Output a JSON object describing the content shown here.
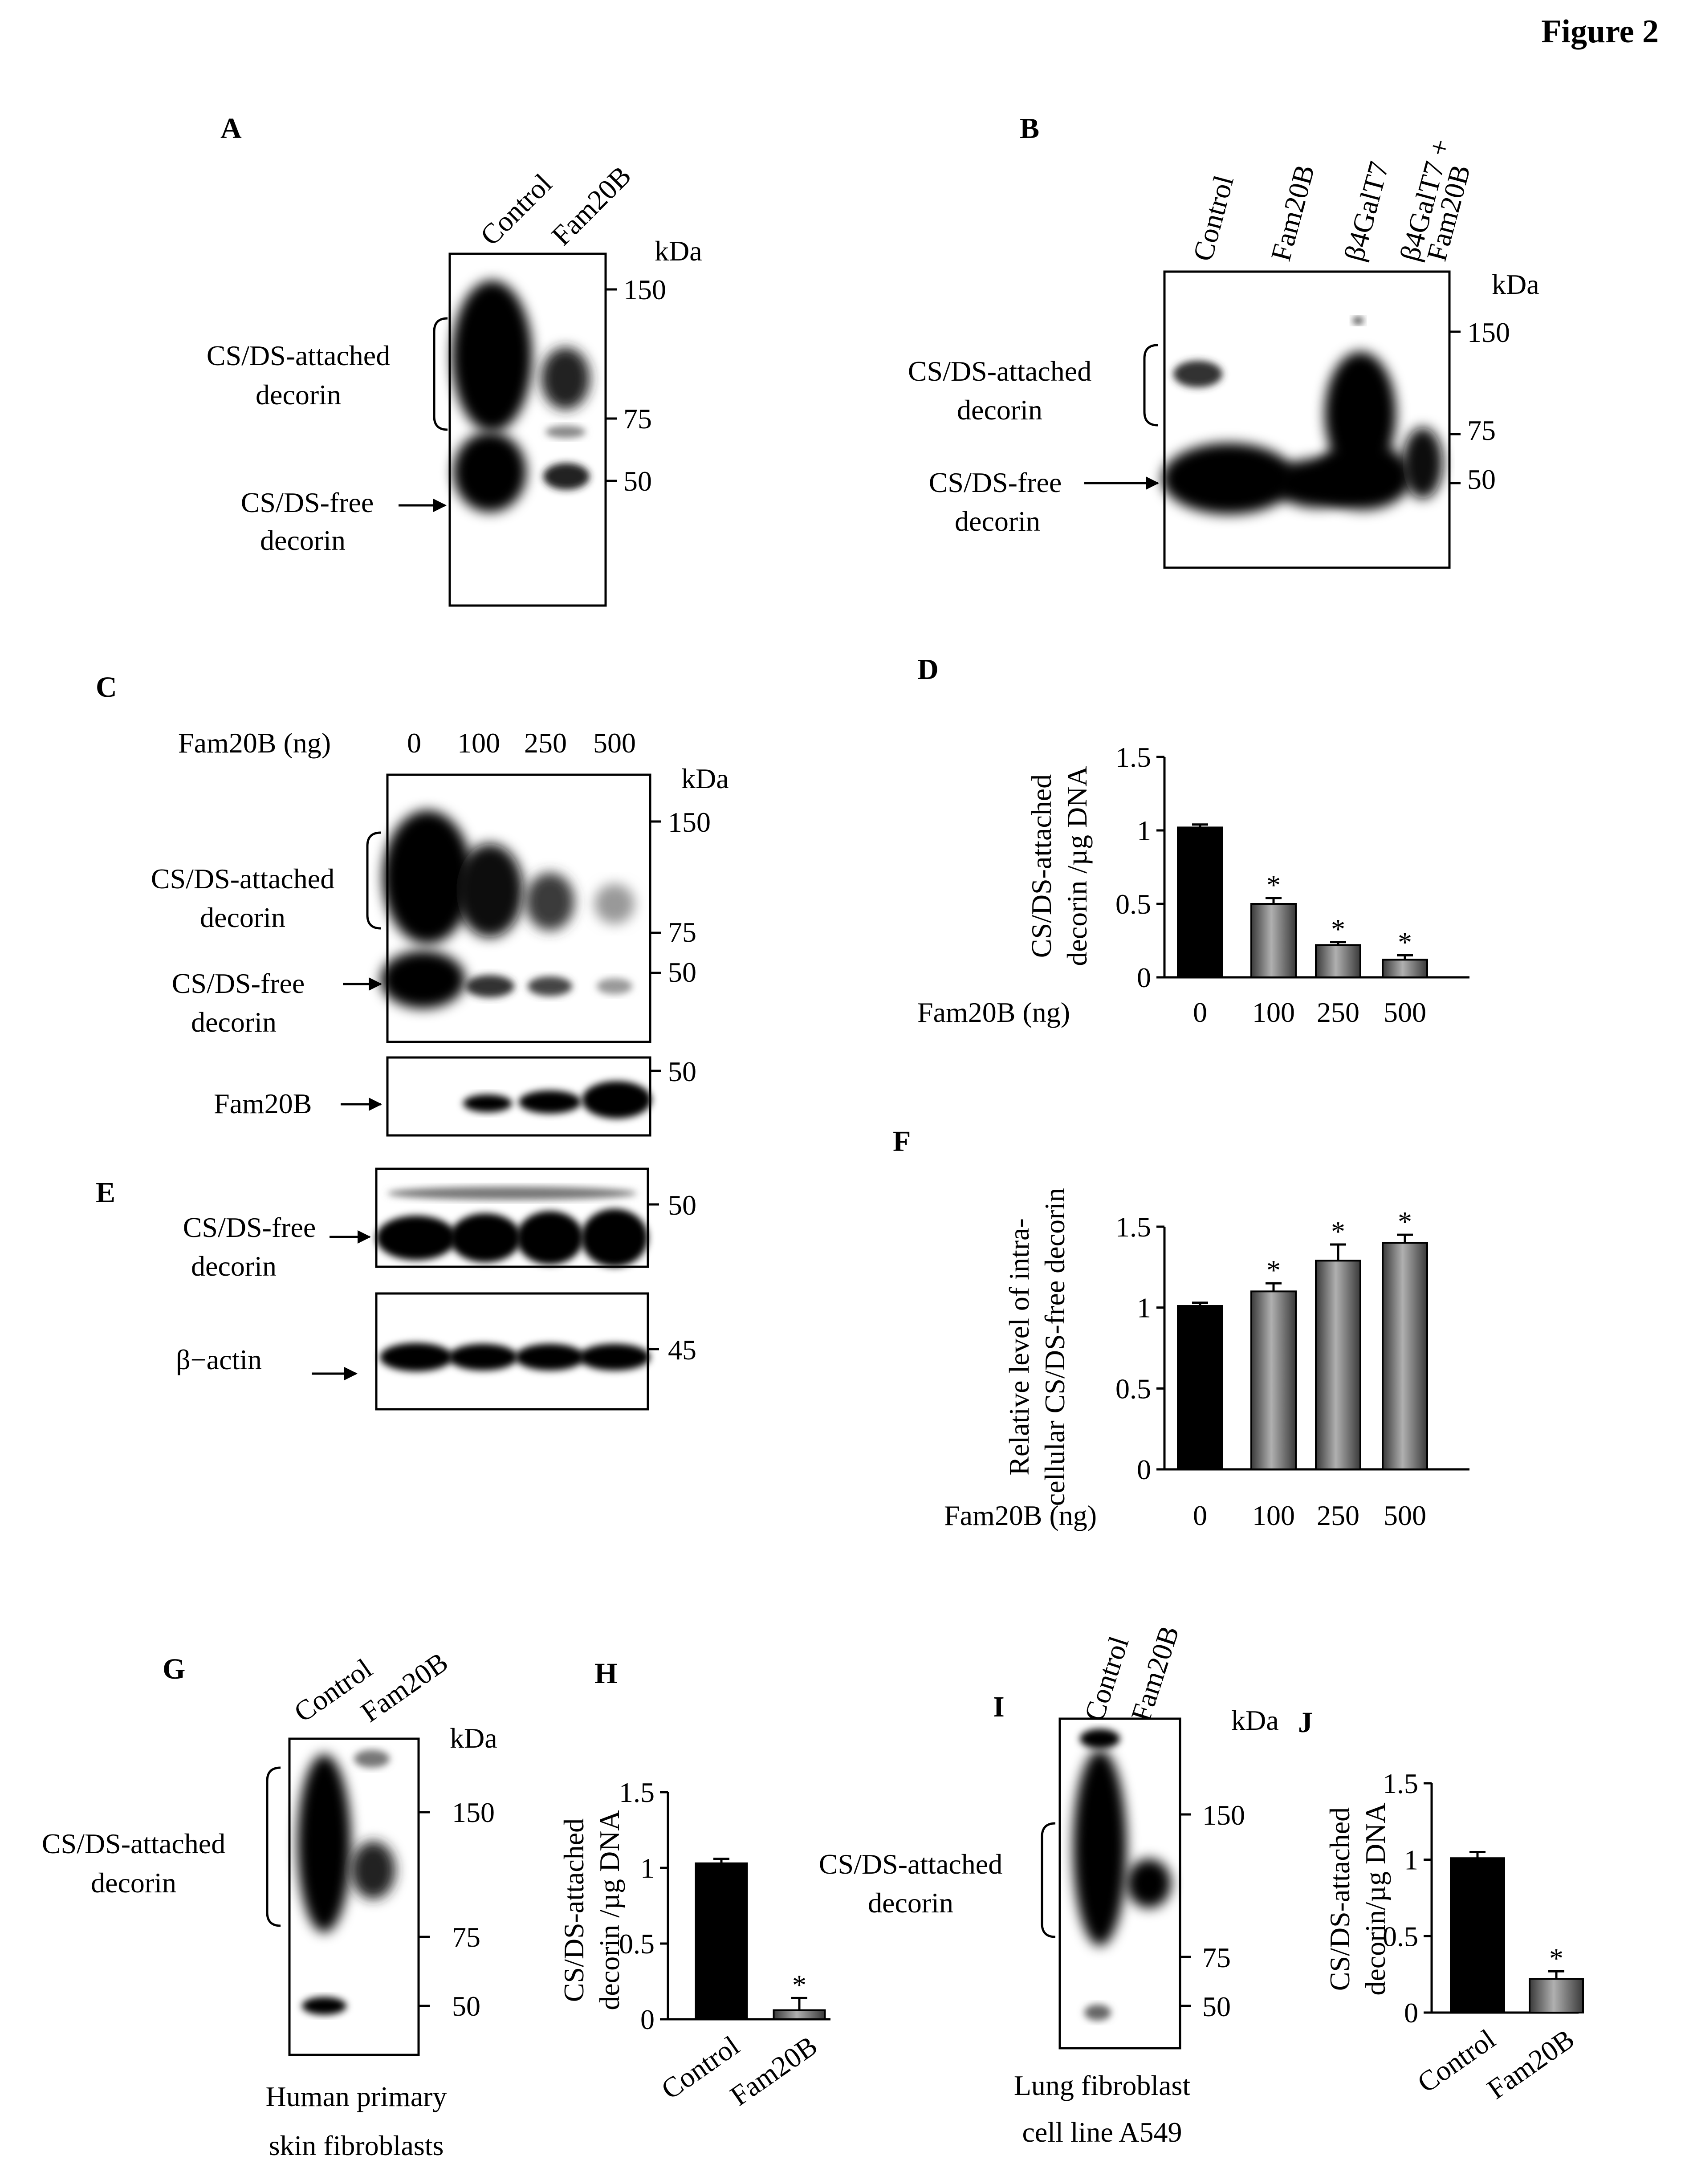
{
  "figure_title": "Figure 2",
  "common": {
    "kda": "kDa",
    "attached": [
      "CS/DS-attached",
      "decorin"
    ],
    "free": [
      "CS/DS-free",
      "decorin"
    ],
    "fam20b_ng": "Fam20B (ng)",
    "star": "*"
  },
  "panels": {
    "A": {
      "label": "A",
      "lanes": [
        "Control",
        "Fam20B"
      ],
      "markers": [
        "150",
        "75",
        "50"
      ]
    },
    "B": {
      "label": "B",
      "lanes": [
        "Control",
        "Fam20B",
        "β4GalT7",
        "β4GalT7 +",
        "Fam20B"
      ],
      "markers": [
        "150",
        "75",
        "50"
      ]
    },
    "C": {
      "label": "C",
      "doses": [
        "0",
        "100",
        "250",
        "500"
      ],
      "markers": [
        "150",
        "75",
        "50"
      ],
      "fam20b_band": "Fam20B",
      "fam20b_marker": "50"
    },
    "E": {
      "label": "E",
      "free_marker": "50",
      "actin_label": "β−actin",
      "actin_marker": "45"
    },
    "G": {
      "label": "G",
      "lanes": [
        "Control",
        "Fam20B"
      ],
      "markers": [
        "150",
        "75",
        "50"
      ],
      "caption": [
        "Human primary",
        "skin fibroblasts"
      ]
    },
    "I": {
      "label": "I",
      "lanes": [
        "Control",
        "Fam20B"
      ],
      "markers": [
        "150",
        "75",
        "50"
      ],
      "caption": [
        "Lung fibroblast",
        "cell line A549"
      ]
    },
    "D": {
      "label": "D"
    },
    "F": {
      "label": "F"
    },
    "H": {
      "label": "H"
    },
    "J": {
      "label": "J"
    }
  },
  "chart_data": [
    {
      "panel": "D",
      "type": "bar",
      "categories": [
        "0",
        "100",
        "250",
        "500"
      ],
      "values": [
        1.02,
        0.5,
        0.22,
        0.12
      ],
      "errors": [
        0.02,
        0.04,
        0.02,
        0.03
      ],
      "significant": [
        false,
        true,
        true,
        true
      ],
      "ylabel": [
        "CS/DS-attached",
        "decorin /µg DNA"
      ],
      "xlabel": "Fam20B (ng)",
      "ylim": [
        0,
        1.5
      ],
      "yticks": [
        "0",
        "0.5",
        "1",
        "1.5"
      ],
      "colors": [
        "#000000",
        "#666666",
        "#666666",
        "#666666"
      ]
    },
    {
      "panel": "F",
      "type": "bar",
      "categories": [
        "0",
        "100",
        "250",
        "500"
      ],
      "values": [
        1.01,
        1.1,
        1.29,
        1.4
      ],
      "errors": [
        0.02,
        0.05,
        0.1,
        0.05
      ],
      "significant": [
        false,
        true,
        true,
        true
      ],
      "ylabel": [
        "Relative level of intra-",
        "cellular CS/DS-free decorin"
      ],
      "xlabel": "Fam20B (ng)",
      "ylim": [
        0,
        1.5
      ],
      "yticks": [
        "0",
        "0.5",
        "1",
        "1.5"
      ],
      "colors": [
        "#000000",
        "#666666",
        "#666666",
        "#666666"
      ]
    },
    {
      "panel": "H",
      "type": "bar",
      "categories": [
        "Control",
        "Fam20B"
      ],
      "values": [
        1.03,
        0.06
      ],
      "errors": [
        0.03,
        0.08
      ],
      "significant": [
        false,
        true
      ],
      "ylabel": [
        "CS/DS-attached",
        "decorin /µg DNA"
      ],
      "ylim": [
        0,
        1.5
      ],
      "yticks": [
        "0",
        "0.5",
        "1",
        "1.5"
      ],
      "colors": [
        "#000000",
        "#666666"
      ]
    },
    {
      "panel": "J",
      "type": "bar",
      "categories": [
        "Control",
        "Fam20B"
      ],
      "values": [
        1.01,
        0.22
      ],
      "errors": [
        0.04,
        0.05
      ],
      "significant": [
        false,
        true
      ],
      "ylabel": [
        "CS/DS-attached",
        "decorin/µg DNA"
      ],
      "ylim": [
        0,
        1.5
      ],
      "yticks": [
        "0",
        "0.5",
        "1",
        "1.5"
      ],
      "colors": [
        "#000000",
        "#666666"
      ]
    }
  ]
}
